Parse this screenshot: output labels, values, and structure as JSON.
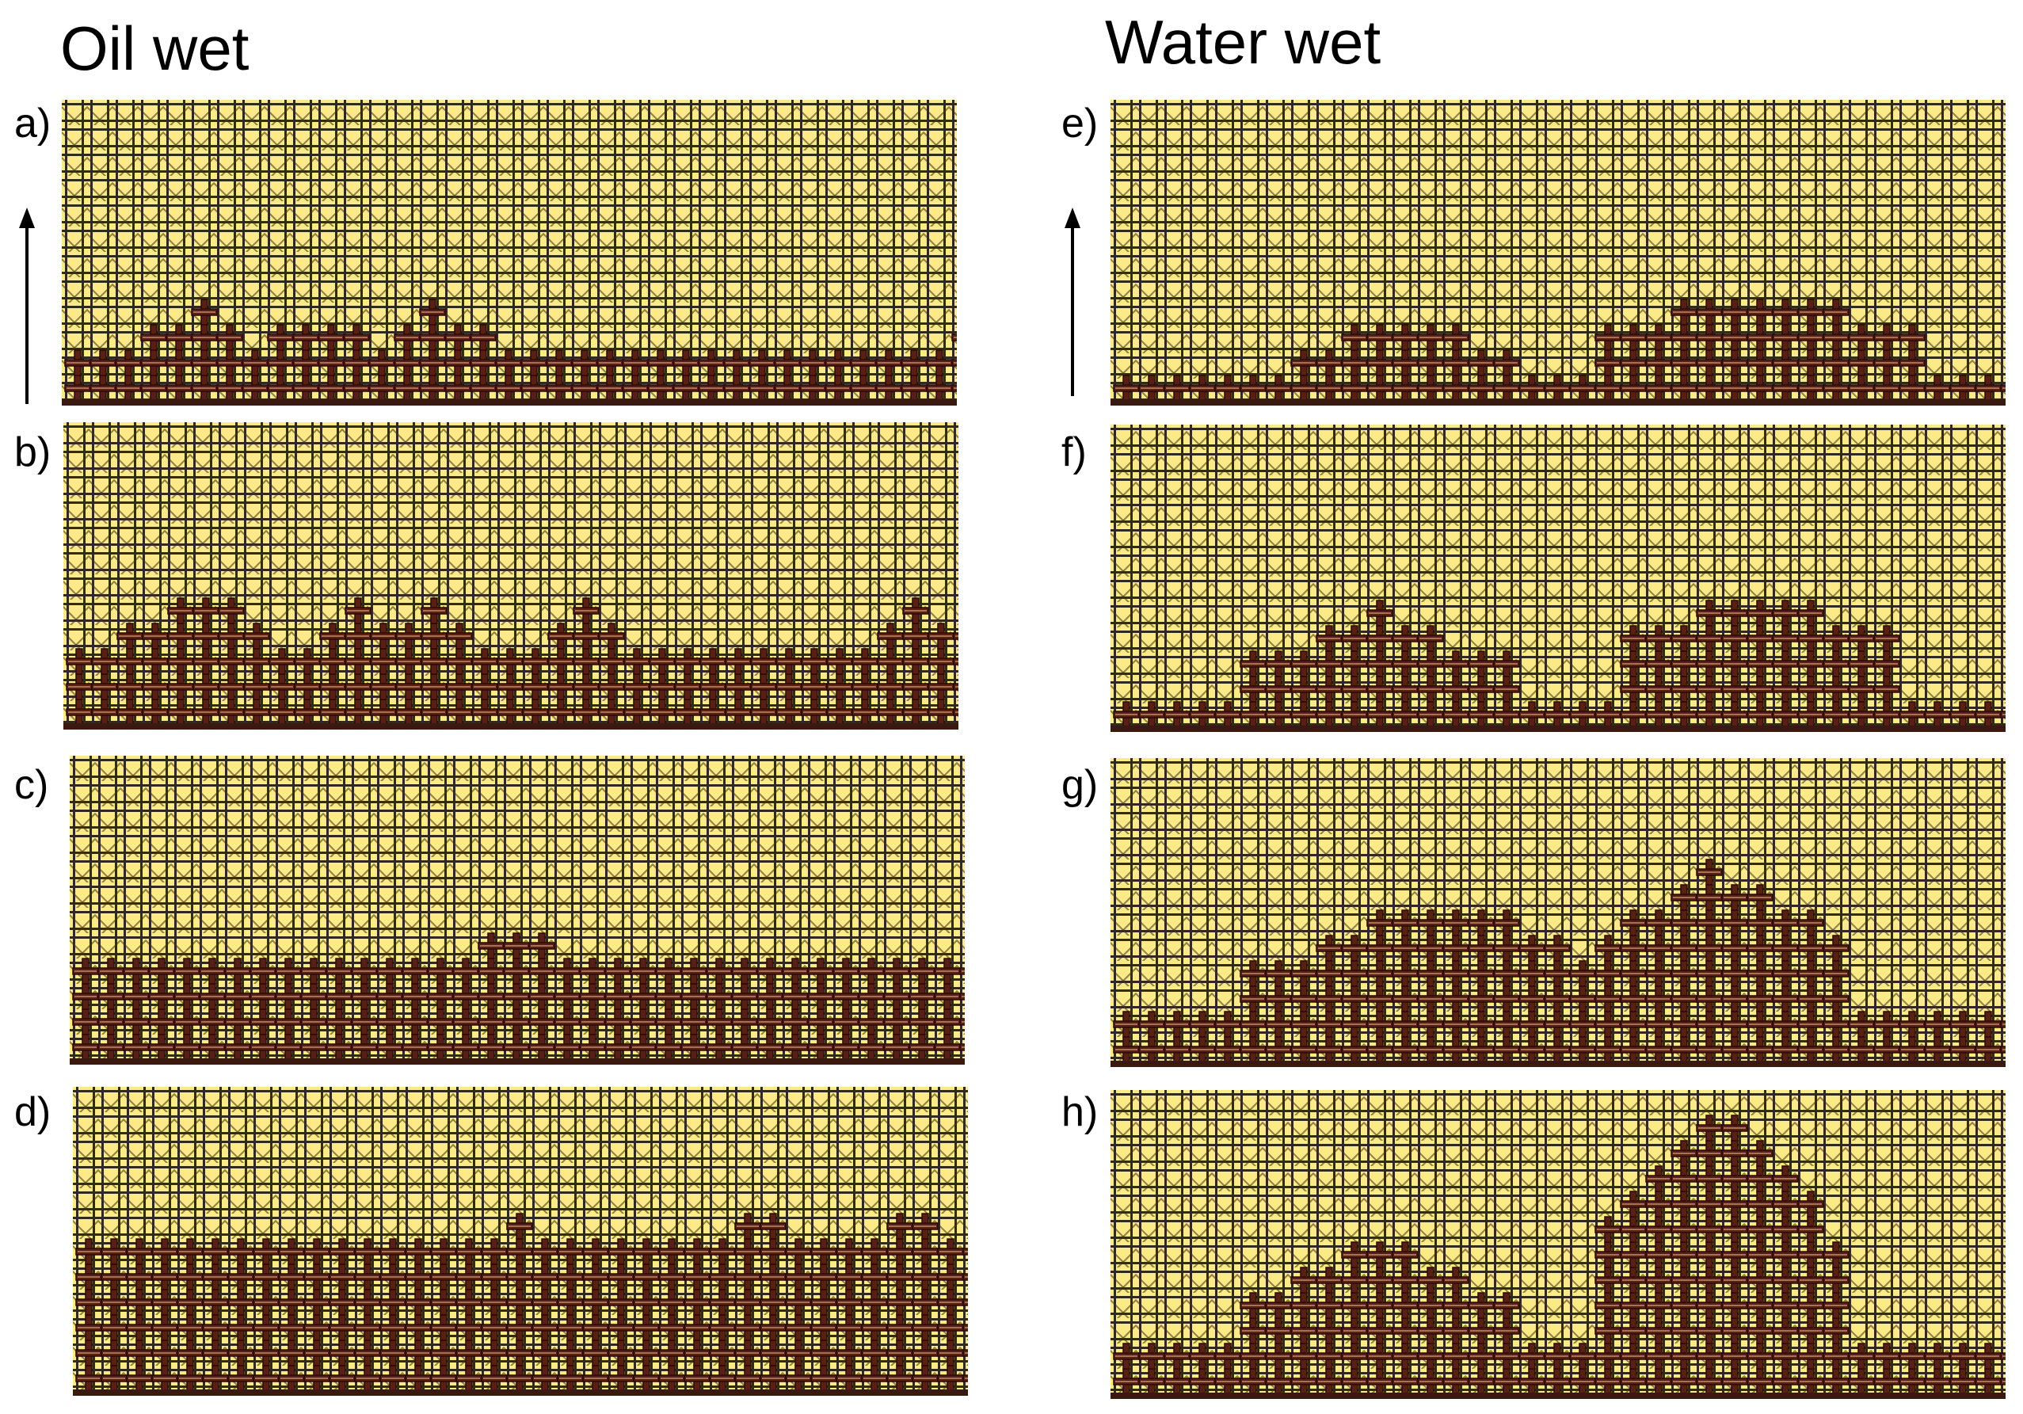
{
  "headings": {
    "left": "Oil wet",
    "right": "Water wet"
  },
  "panels": {
    "a": {
      "label": "a)"
    },
    "b": {
      "label": "b)"
    },
    "c": {
      "label": "c)"
    },
    "d": {
      "label": "d)"
    },
    "e": {
      "label": "e)"
    },
    "f": {
      "label": "f)"
    },
    "g": {
      "label": "g)"
    },
    "h": {
      "label": "h)"
    }
  },
  "colors": {
    "pore_fluid": "#fce987",
    "grain_edge": "#2e2a1c",
    "invading_fluid": "#5a1f14",
    "invading_edge": "#2a0a06",
    "throat_highlight": "#e3b48a"
  }
}
